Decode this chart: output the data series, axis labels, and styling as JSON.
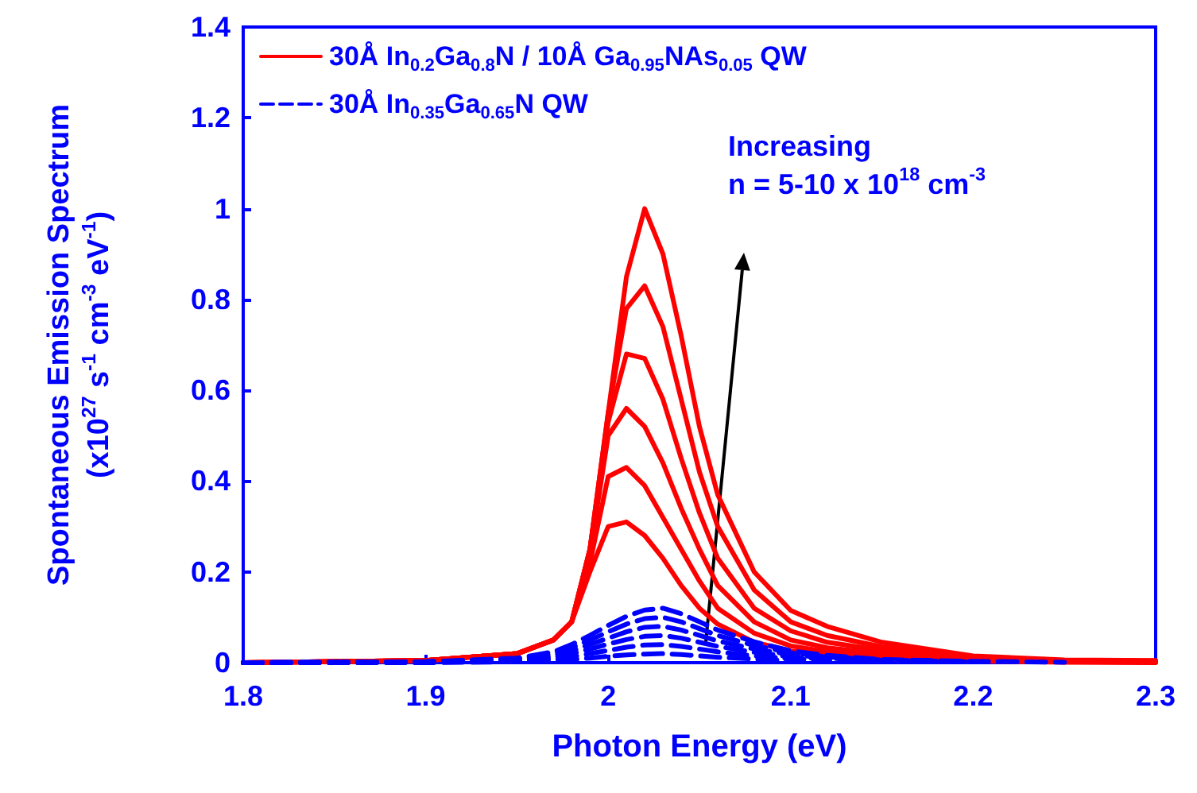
{
  "chart_data": {
    "type": "line",
    "xlabel": "Photon Energy (eV)",
    "ylabel": "Spontaneous Emission Spectrum\n(x10$^{27}$ s$^{-1}$ cm$^{-3}$ eV$^{-1}$)",
    "x": [
      1.8,
      1.9,
      1.95,
      1.97,
      1.98,
      1.99,
      2.0,
      2.01,
      2.02,
      2.03,
      2.04,
      2.05,
      2.06,
      2.08,
      2.1,
      2.12,
      2.15,
      2.2,
      2.25,
      2.3
    ],
    "xlim": [
      1.8,
      2.3
    ],
    "xticks": [
      1.8,
      1.9,
      2,
      2.1,
      2.2,
      2.3
    ],
    "ylim": [
      0,
      1.4
    ],
    "yticks": [
      0,
      0.2,
      0.4,
      0.6,
      0.8,
      1,
      1.2,
      1.4
    ],
    "grid": false,
    "legend": "top left",
    "marker": "none",
    "annotations": [
      "Increasing\nn = 5-10 x 10$^{18}$ cm$^{-3}$"
    ],
    "series": [
      {
        "name": "30Å In$_{0.2}$Ga$_{0.8}$N / 10Å Ga$_{0.95}$NAs$_{0.05}$ QW",
        "color": "#ff0000",
        "line_style": "solid",
        "values": [
          0,
          0.005,
          0.02,
          0.05,
          0.09,
          0.25,
          0.55,
          0.85,
          1.0,
          0.9,
          0.72,
          0.52,
          0.37,
          0.2,
          0.115,
          0.08,
          0.045,
          0.015,
          0.006,
          0.005
        ]
      },
      {
        "color": "#ff0000",
        "line_style": "solid",
        "values": [
          0,
          0.005,
          0.02,
          0.05,
          0.09,
          0.25,
          0.55,
          0.78,
          0.83,
          0.74,
          0.58,
          0.42,
          0.3,
          0.16,
          0.09,
          0.06,
          0.035,
          0.012,
          0.005,
          0.004
        ]
      },
      {
        "color": "#ff0000",
        "line_style": "solid",
        "values": [
          0,
          0.005,
          0.02,
          0.05,
          0.09,
          0.25,
          0.53,
          0.68,
          0.67,
          0.58,
          0.45,
          0.33,
          0.23,
          0.12,
          0.07,
          0.045,
          0.027,
          0.01,
          0.004,
          0.003
        ]
      },
      {
        "color": "#ff0000",
        "line_style": "solid",
        "values": [
          0,
          0.005,
          0.02,
          0.05,
          0.09,
          0.24,
          0.5,
          0.56,
          0.52,
          0.44,
          0.34,
          0.25,
          0.17,
          0.09,
          0.05,
          0.033,
          0.02,
          0.008,
          0.003,
          0.002
        ]
      },
      {
        "color": "#ff0000",
        "line_style": "solid",
        "values": [
          0,
          0.005,
          0.02,
          0.05,
          0.09,
          0.22,
          0.41,
          0.43,
          0.39,
          0.32,
          0.25,
          0.18,
          0.12,
          0.065,
          0.037,
          0.024,
          0.015,
          0.006,
          0.002,
          0.001
        ]
      },
      {
        "color": "#ff0000",
        "line_style": "solid",
        "values": [
          0,
          0.005,
          0.02,
          0.05,
          0.09,
          0.2,
          0.3,
          0.31,
          0.28,
          0.23,
          0.17,
          0.12,
          0.085,
          0.045,
          0.026,
          0.017,
          0.01,
          0.004,
          0.001,
          0
        ]
      },
      {
        "name": "30Å In$_{0.35}$Ga$_{0.65}$N QW",
        "color": "#0000ff",
        "line_style": "dashed",
        "x": [
          1.8,
          1.9,
          1.95,
          1.97,
          1.98,
          1.99,
          2.0,
          2.01,
          2.02,
          2.03,
          2.04,
          2.05,
          2.06,
          2.08,
          2.1,
          2.12,
          2.15,
          2.2,
          2.25
        ],
        "values": [
          0,
          0.002,
          0.01,
          0.024,
          0.04,
          0.06,
          0.082,
          0.102,
          0.116,
          0.12,
          0.108,
          0.09,
          0.072,
          0.046,
          0.026,
          0.016,
          0.007,
          0.003,
          0.001
        ]
      },
      {
        "color": "#0000ff",
        "line_style": "dashed",
        "x": [
          1.8,
          1.9,
          1.95,
          1.97,
          1.98,
          1.99,
          2.0,
          2.01,
          2.02,
          2.03,
          2.04,
          2.05,
          2.06,
          2.08,
          2.1,
          2.12,
          2.15,
          2.2
        ],
        "values": [
          0,
          0.002,
          0.008,
          0.02,
          0.033,
          0.05,
          0.068,
          0.085,
          0.097,
          0.1,
          0.09,
          0.075,
          0.06,
          0.038,
          0.022,
          0.013,
          0.006,
          0.002
        ]
      },
      {
        "color": "#0000ff",
        "line_style": "dashed",
        "x": [
          1.8,
          1.9,
          1.95,
          1.97,
          1.98,
          1.99,
          2.0,
          2.01,
          2.02,
          2.03,
          2.04,
          2.05,
          2.06,
          2.08,
          2.1,
          2.12,
          2.15,
          2.17
        ],
        "values": [
          0,
          0.002,
          0.006,
          0.016,
          0.026,
          0.04,
          0.054,
          0.068,
          0.078,
          0.08,
          0.072,
          0.06,
          0.048,
          0.03,
          0.018,
          0.01,
          0.005,
          0.003
        ]
      },
      {
        "color": "#0000ff",
        "line_style": "dashed",
        "x": [
          1.8,
          1.9,
          1.95,
          1.97,
          1.98,
          1.99,
          2.0,
          2.01,
          2.02,
          2.03,
          2.04,
          2.05,
          2.06,
          2.08,
          2.1,
          2.12,
          2.15
        ],
        "values": [
          0,
          0.001,
          0.005,
          0.012,
          0.02,
          0.03,
          0.041,
          0.051,
          0.058,
          0.06,
          0.054,
          0.045,
          0.036,
          0.023,
          0.013,
          0.008,
          0.004
        ]
      },
      {
        "color": "#0000ff",
        "line_style": "dashed",
        "x": [
          1.8,
          1.9,
          1.95,
          1.97,
          1.98,
          1.99,
          2.0,
          2.01,
          2.02,
          2.03,
          2.04,
          2.05,
          2.06,
          2.08,
          2.1,
          2.12
        ],
        "values": [
          0,
          0.001,
          0.003,
          0.008,
          0.013,
          0.02,
          0.027,
          0.034,
          0.039,
          0.04,
          0.036,
          0.03,
          0.024,
          0.015,
          0.009,
          0.005
        ]
      },
      {
        "color": "#0000ff",
        "line_style": "dashed",
        "x": [
          1.8,
          1.9,
          1.95,
          1.97,
          1.98,
          1.99,
          2.0,
          2.01,
          2.02,
          2.03,
          2.04,
          2.05,
          2.06,
          2.08,
          2.1
        ],
        "values": [
          0,
          0,
          0.002,
          0.004,
          0.007,
          0.01,
          0.014,
          0.017,
          0.019,
          0.02,
          0.018,
          0.015,
          0.012,
          0.008,
          0.004
        ]
      }
    ]
  }
}
